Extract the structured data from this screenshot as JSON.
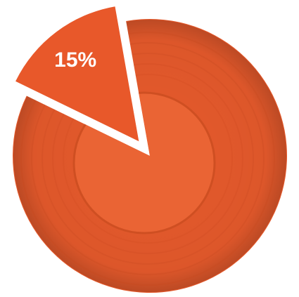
{
  "chart_data": {
    "type": "pie",
    "categories": null,
    "values": [
      15,
      85
    ],
    "value_labels": [
      "15%",
      null
    ],
    "colors": [
      "#e8582a",
      "#e65a2c"
    ]
  }
}
